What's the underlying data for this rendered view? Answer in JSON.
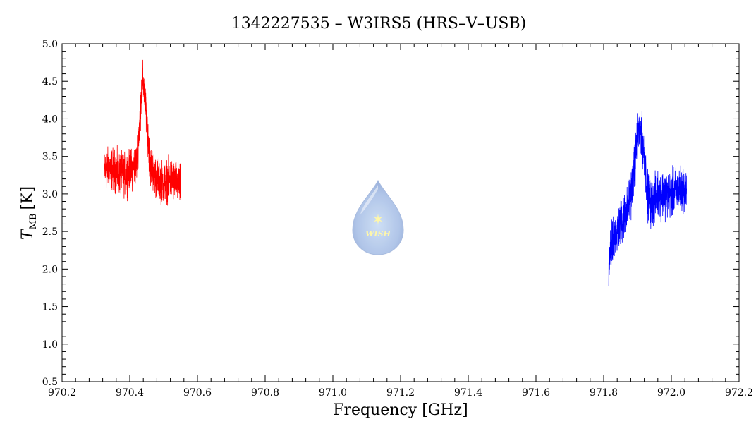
{
  "chart_data": {
    "type": "line",
    "title": "1342227535 – W3IRS5 (HRS–V–USB)",
    "xlabel": "Frequency [GHz]",
    "ylabel_main": "T",
    "ylabel_sub": "MB",
    "ylabel_unit": "[K]",
    "xlim": [
      970.2,
      972.2
    ],
    "ylim": [
      0.5,
      5.0
    ],
    "x_ticks": [
      "970.2",
      "970.4",
      "970.6",
      "970.8",
      "971.0",
      "971.2",
      "971.4",
      "971.6",
      "971.8",
      "972.0",
      "972.2"
    ],
    "y_ticks": [
      "0.5",
      "1.0",
      "1.5",
      "2.0",
      "2.5",
      "3.0",
      "3.5",
      "4.0",
      "4.5",
      "5.0"
    ],
    "grid": false,
    "logo_text": "WISH",
    "series": [
      {
        "color": "#ff0000",
        "x": [
          970.325,
          970.34,
          970.36,
          970.38,
          970.4,
          970.42,
          970.43,
          970.435,
          970.44,
          970.45,
          970.46,
          970.48,
          970.5,
          970.52,
          970.54,
          970.55
        ],
        "y": [
          3.3,
          3.35,
          3.3,
          3.25,
          3.3,
          3.4,
          4.0,
          4.4,
          4.5,
          4.0,
          3.4,
          3.2,
          3.15,
          3.2,
          3.15,
          3.1
        ],
        "noise": 0.25
      },
      {
        "color": "#0000ff",
        "x": [
          971.815,
          971.82,
          971.83,
          971.85,
          971.87,
          971.88,
          971.89,
          971.9,
          971.91,
          971.92,
          971.93,
          971.94,
          971.96,
          971.98,
          972.0,
          972.02,
          972.045
        ],
        "y": [
          2.0,
          2.2,
          2.4,
          2.6,
          2.8,
          3.0,
          3.3,
          3.8,
          3.85,
          3.5,
          3.0,
          2.85,
          3.0,
          3.0,
          3.0,
          3.05,
          3.05
        ],
        "noise": 0.28
      }
    ]
  }
}
